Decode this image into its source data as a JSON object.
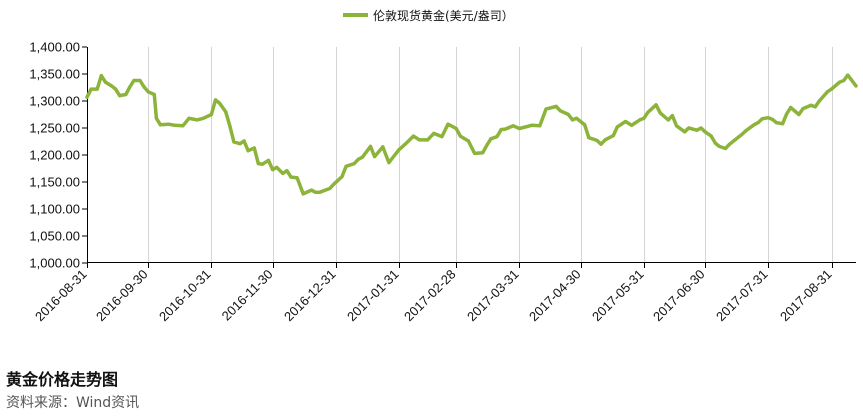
{
  "caption": {
    "title": "黄金价格走势图",
    "source": "资料来源：Wind资讯"
  },
  "chart_data": {
    "type": "line",
    "title": "",
    "xlabel": "",
    "ylabel": "",
    "ylim": [
      1000,
      1400
    ],
    "xlim": [
      "2016-08-31",
      "2017-09-12"
    ],
    "grid": {
      "horizontal": false,
      "vertical": true
    },
    "legend": {
      "placement": "top-center"
    },
    "y_ticks": [
      "1,000.00",
      "1,050.00",
      "1,100.00",
      "1,150.00",
      "1,200.00",
      "1,250.00",
      "1,300.00",
      "1,350.00",
      "1,400.00"
    ],
    "x_ticks": [
      "2016-08-31",
      "2016-09-30",
      "2016-10-31",
      "2016-11-30",
      "2016-12-31",
      "2017-01-31",
      "2017-02-28",
      "2017-03-31",
      "2017-04-30",
      "2017-05-31",
      "2017-06-30",
      "2017-07-31",
      "2017-08-31"
    ],
    "series": [
      {
        "name": "伦敦现货黄金(美元/盎司）",
        "color": "#8cb33a",
        "points": [
          [
            "2016-08-31",
            1307
          ],
          [
            "2016-09-02",
            1322
          ],
          [
            "2016-09-05",
            1322
          ],
          [
            "2016-09-07",
            1347
          ],
          [
            "2016-09-09",
            1335
          ],
          [
            "2016-09-12",
            1328
          ],
          [
            "2016-09-14",
            1322
          ],
          [
            "2016-09-16",
            1310
          ],
          [
            "2016-09-19",
            1312
          ],
          [
            "2016-09-21",
            1326
          ],
          [
            "2016-09-23",
            1338
          ],
          [
            "2016-09-26",
            1338
          ],
          [
            "2016-09-28",
            1326
          ],
          [
            "2016-09-30",
            1317
          ],
          [
            "2016-10-03",
            1312
          ],
          [
            "2016-10-04",
            1268
          ],
          [
            "2016-10-06",
            1256
          ],
          [
            "2016-10-10",
            1257
          ],
          [
            "2016-10-13",
            1255
          ],
          [
            "2016-10-17",
            1254
          ],
          [
            "2016-10-20",
            1268
          ],
          [
            "2016-10-24",
            1265
          ],
          [
            "2016-10-27",
            1268
          ],
          [
            "2016-10-31",
            1275
          ],
          [
            "2016-11-02",
            1302
          ],
          [
            "2016-11-04",
            1296
          ],
          [
            "2016-11-07",
            1280
          ],
          [
            "2016-11-09",
            1254
          ],
          [
            "2016-11-11",
            1224
          ],
          [
            "2016-11-14",
            1221
          ],
          [
            "2016-11-16",
            1226
          ],
          [
            "2016-11-18",
            1208
          ],
          [
            "2016-11-21",
            1213
          ],
          [
            "2016-11-23",
            1184
          ],
          [
            "2016-11-25",
            1183
          ],
          [
            "2016-11-28",
            1190
          ],
          [
            "2016-11-30",
            1173
          ],
          [
            "2016-12-02",
            1177
          ],
          [
            "2016-12-05",
            1166
          ],
          [
            "2016-12-07",
            1171
          ],
          [
            "2016-12-09",
            1159
          ],
          [
            "2016-12-12",
            1158
          ],
          [
            "2016-12-15",
            1128
          ],
          [
            "2016-12-19",
            1135
          ],
          [
            "2016-12-21",
            1131
          ],
          [
            "2016-12-23",
            1131
          ],
          [
            "2016-12-28",
            1138
          ],
          [
            "2016-12-30",
            1146
          ],
          [
            "2017-01-03",
            1160
          ],
          [
            "2017-01-05",
            1179
          ],
          [
            "2017-01-09",
            1184
          ],
          [
            "2017-01-11",
            1192
          ],
          [
            "2017-01-13",
            1196
          ],
          [
            "2017-01-17",
            1216
          ],
          [
            "2017-01-19",
            1197
          ],
          [
            "2017-01-23",
            1215
          ],
          [
            "2017-01-26",
            1186
          ],
          [
            "2017-01-31",
            1210
          ],
          [
            "2017-02-03",
            1220
          ],
          [
            "2017-02-07",
            1235
          ],
          [
            "2017-02-10",
            1228
          ],
          [
            "2017-02-14",
            1228
          ],
          [
            "2017-02-17",
            1240
          ],
          [
            "2017-02-21",
            1234
          ],
          [
            "2017-02-24",
            1257
          ],
          [
            "2017-02-28",
            1249
          ],
          [
            "2017-03-02",
            1235
          ],
          [
            "2017-03-06",
            1226
          ],
          [
            "2017-03-09",
            1203
          ],
          [
            "2017-03-13",
            1204
          ],
          [
            "2017-03-15",
            1218
          ],
          [
            "2017-03-17",
            1230
          ],
          [
            "2017-03-20",
            1234
          ],
          [
            "2017-03-22",
            1247
          ],
          [
            "2017-03-24",
            1248
          ],
          [
            "2017-03-28",
            1254
          ],
          [
            "2017-03-31",
            1249
          ],
          [
            "2017-04-03",
            1252
          ],
          [
            "2017-04-06",
            1255
          ],
          [
            "2017-04-10",
            1254
          ],
          [
            "2017-04-13",
            1285
          ],
          [
            "2017-04-18",
            1290
          ],
          [
            "2017-04-20",
            1282
          ],
          [
            "2017-04-24",
            1275
          ],
          [
            "2017-04-26",
            1265
          ],
          [
            "2017-04-28",
            1268
          ],
          [
            "2017-05-02",
            1256
          ],
          [
            "2017-05-04",
            1232
          ],
          [
            "2017-05-08",
            1227
          ],
          [
            "2017-05-10",
            1220
          ],
          [
            "2017-05-12",
            1228
          ],
          [
            "2017-05-16",
            1236
          ],
          [
            "2017-05-18",
            1252
          ],
          [
            "2017-05-22",
            1262
          ],
          [
            "2017-05-25",
            1255
          ],
          [
            "2017-05-29",
            1265
          ],
          [
            "2017-05-31",
            1268
          ],
          [
            "2017-06-02",
            1279
          ],
          [
            "2017-06-06",
            1293
          ],
          [
            "2017-06-08",
            1278
          ],
          [
            "2017-06-12",
            1265
          ],
          [
            "2017-06-14",
            1273
          ],
          [
            "2017-06-16",
            1254
          ],
          [
            "2017-06-20",
            1243
          ],
          [
            "2017-06-22",
            1250
          ],
          [
            "2017-06-26",
            1246
          ],
          [
            "2017-06-28",
            1250
          ],
          [
            "2017-06-30",
            1243
          ],
          [
            "2017-07-03",
            1235
          ],
          [
            "2017-07-05",
            1222
          ],
          [
            "2017-07-07",
            1216
          ],
          [
            "2017-07-10",
            1212
          ],
          [
            "2017-07-12",
            1220
          ],
          [
            "2017-07-14",
            1226
          ],
          [
            "2017-07-18",
            1238
          ],
          [
            "2017-07-20",
            1245
          ],
          [
            "2017-07-24",
            1256
          ],
          [
            "2017-07-26",
            1260
          ],
          [
            "2017-07-28",
            1267
          ],
          [
            "2017-07-31",
            1269
          ],
          [
            "2017-08-02",
            1266
          ],
          [
            "2017-08-04",
            1260
          ],
          [
            "2017-08-07",
            1258
          ],
          [
            "2017-08-09",
            1276
          ],
          [
            "2017-08-11",
            1288
          ],
          [
            "2017-08-15",
            1275
          ],
          [
            "2017-08-17",
            1286
          ],
          [
            "2017-08-21",
            1292
          ],
          [
            "2017-08-23",
            1289
          ],
          [
            "2017-08-25",
            1300
          ],
          [
            "2017-08-29",
            1317
          ],
          [
            "2017-08-31",
            1322
          ],
          [
            "2017-09-04",
            1335
          ],
          [
            "2017-09-06",
            1338
          ],
          [
            "2017-09-08",
            1348
          ],
          [
            "2017-09-12",
            1328
          ]
        ]
      }
    ]
  }
}
